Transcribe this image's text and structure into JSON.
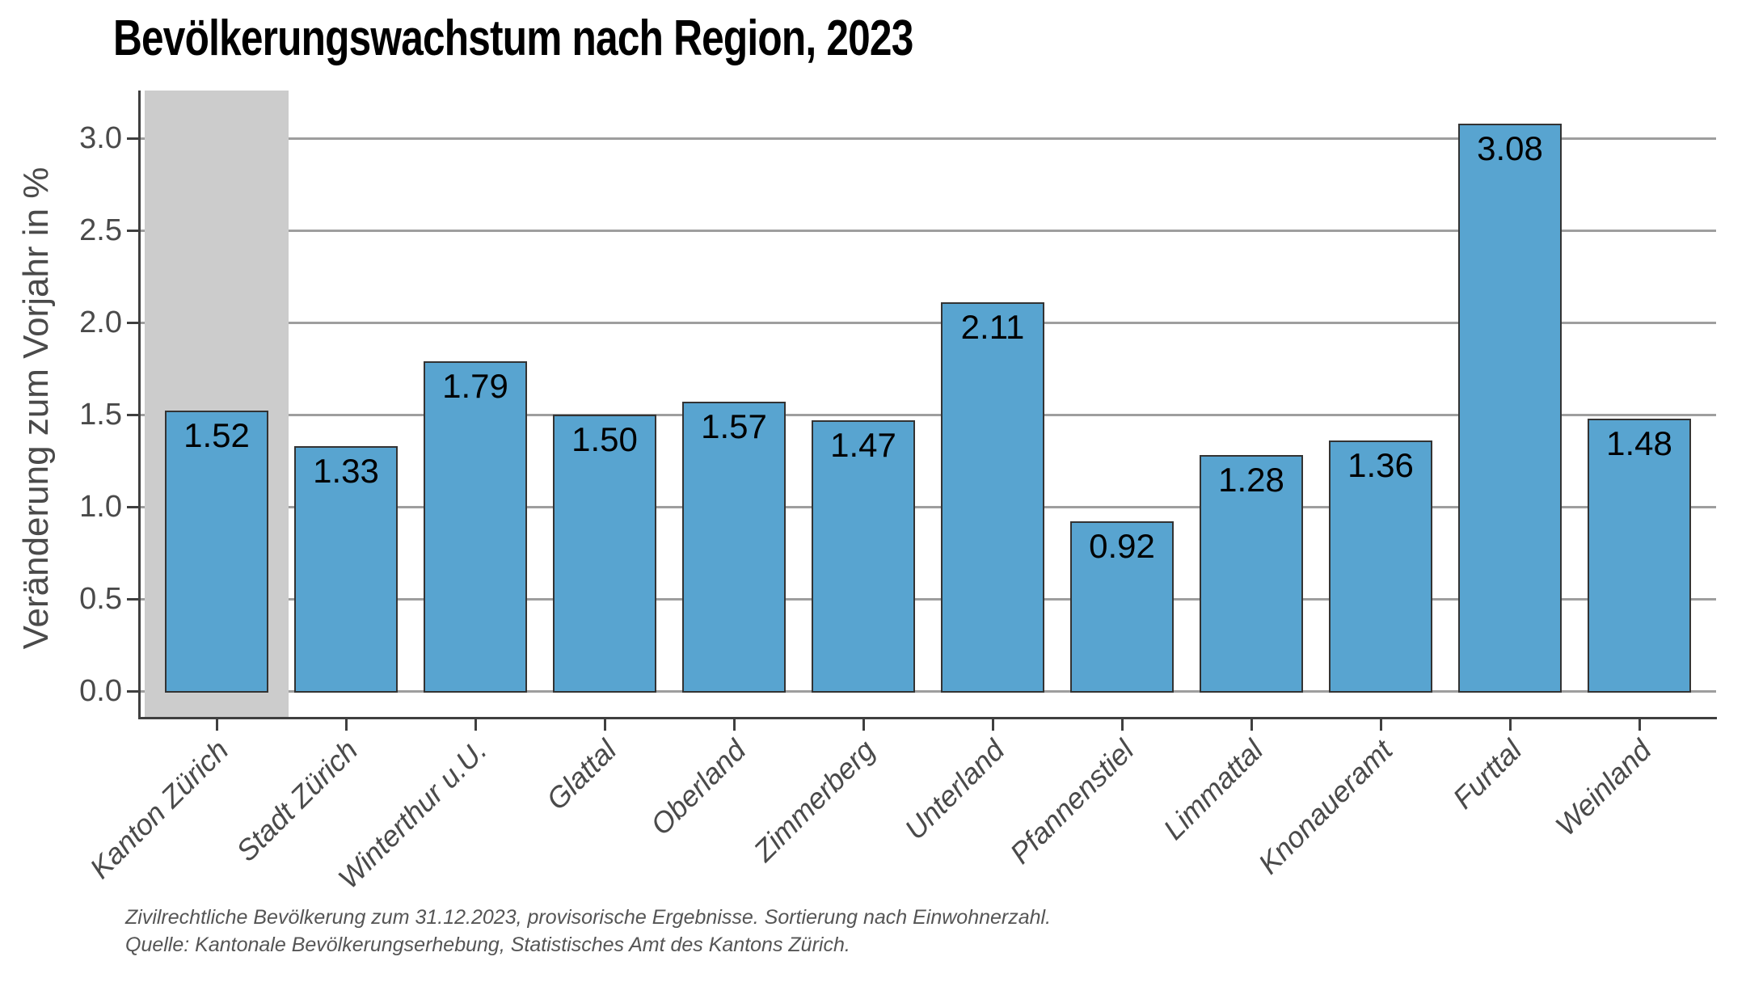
{
  "chart_data": {
    "type": "bar",
    "title": "Bevölkerungswachstum nach Region, 2023",
    "ylabel": "Veränderung zum Vorjahr in %",
    "xlabel": "",
    "categories": [
      "Kanton Zürich",
      "Stadt Zürich",
      "Winterthur u.U.",
      "Glattal",
      "Oberland",
      "Zimmerberg",
      "Unterland",
      "Pfannenstiel",
      "Limmattal",
      "Knonaueramt",
      "Furttal",
      "Weinland"
    ],
    "values": [
      1.52,
      1.33,
      1.79,
      1.5,
      1.57,
      1.47,
      2.11,
      0.92,
      1.28,
      1.36,
      3.08,
      1.48
    ],
    "bar_labels": [
      "1.52",
      "1.33",
      "1.79",
      "1.50",
      "1.57",
      "1.47",
      "2.11",
      "0.92",
      "1.28",
      "1.36",
      "3.08",
      "1.48"
    ],
    "ytick_values": [
      0.0,
      0.5,
      1.0,
      1.5,
      2.0,
      2.5,
      3.0
    ],
    "ytick_labels": [
      "0.0",
      "0.5",
      "1.0",
      "1.5",
      "2.0",
      "2.5",
      "3.0"
    ],
    "ylim": [
      -0.15,
      3.26
    ],
    "grid": "horizontal-only",
    "legend_position": "none",
    "highlighted_category": "Kanton Zürich",
    "colors": {
      "bar_fill": "#58A4D0",
      "bar_border": "#333333",
      "highlight_band": "#CCCCCC",
      "gridline": "#9E9E9E",
      "axis_line": "#3F3F3F",
      "tick_label": "#4A4A4A",
      "value_label": "#000000"
    }
  },
  "footnotes": {
    "line1": "Zivilrechtliche Bevölkerung zum 31.12.2023, provisorische Ergebnisse. Sortierung nach Einwohnerzahl.",
    "line2": "Quelle: Kantonale Bevölkerungserhebung, Statistisches Amt des Kantons Zürich."
  }
}
